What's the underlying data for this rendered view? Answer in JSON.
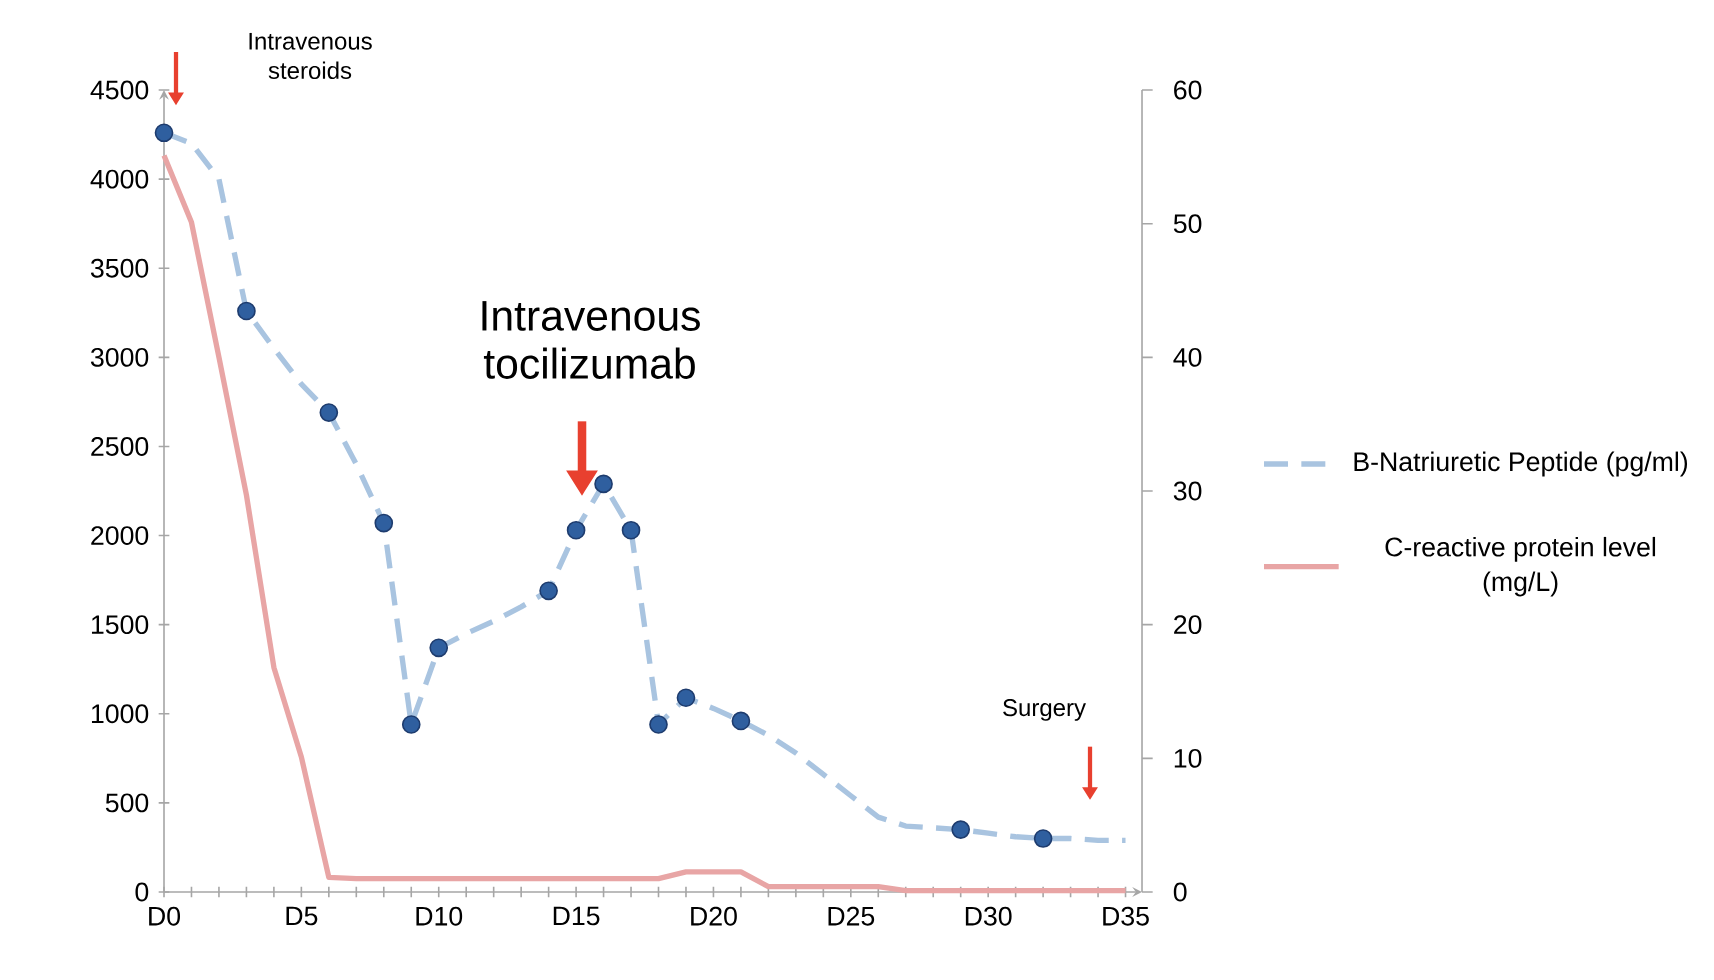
{
  "chart_data": {
    "type": "line",
    "categories": [
      "D0",
      null,
      null,
      null,
      null,
      "D5",
      null,
      null,
      null,
      null,
      "D10",
      null,
      null,
      null,
      null,
      "D15",
      null,
      null,
      null,
      null,
      "D20",
      null,
      null,
      null,
      null,
      "D25",
      null,
      null,
      null,
      null,
      "D30",
      null,
      null,
      null,
      null,
      "D35"
    ],
    "ylim": [
      0,
      4500
    ],
    "yticks": [
      0,
      500,
      1000,
      1500,
      2000,
      2500,
      3000,
      3500,
      4000,
      4500
    ],
    "y2lim": [
      0,
      60
    ],
    "y2ticks": [
      0,
      10,
      20,
      30,
      40,
      50,
      60
    ],
    "legend": "right",
    "series": [
      {
        "name": "B-Natriuretic Peptide (pg/ml)",
        "color": "#a9c4e0",
        "line_style": "dashed",
        "marker": "none",
        "values": [
          4260,
          4200,
          4000,
          3260,
          3050,
          2850,
          2690,
          2400,
          2070,
          940,
          1370,
          1450,
          1520,
          1600,
          1690,
          2030,
          2290,
          2030,
          940,
          1090,
          1030,
          960,
          880,
          780,
          660,
          540,
          420,
          370,
          360,
          350,
          330,
          310,
          300,
          300,
          290,
          290
        ]
      },
      {
        "type": "scatter",
        "color": "#2f5f9f",
        "marker": "circle",
        "values": [
          4260,
          null,
          null,
          3260,
          null,
          null,
          2690,
          null,
          2070,
          940,
          1370,
          null,
          null,
          null,
          1690,
          2030,
          2290,
          2030,
          940,
          1090,
          null,
          960,
          null,
          null,
          null,
          null,
          null,
          null,
          null,
          350,
          null,
          null,
          300,
          null,
          null,
          null
        ]
      },
      {
        "name": "C-reactive protein level (mg/L)",
        "axis": "y2",
        "color": "#e8a5a5",
        "line_style": "solid",
        "marker": "none",
        "values": [
          55.1,
          50.1,
          40,
          29.7,
          16.8,
          10.1,
          1.1,
          1.0,
          1.0,
          1.0,
          1.0,
          1.0,
          1.0,
          1.0,
          1.0,
          1.0,
          1.0,
          1.0,
          1.0,
          1.5,
          1.5,
          1.5,
          0.4,
          0.4,
          0.4,
          0.4,
          0.4,
          0.1,
          0.1,
          0.1,
          0.1,
          0.1,
          0.1,
          0.1,
          0.1,
          0.1
        ]
      }
    ],
    "annotations": [
      "Intravenous steroids",
      "Intravenous tocilizumab",
      "Surgery"
    ]
  }
}
